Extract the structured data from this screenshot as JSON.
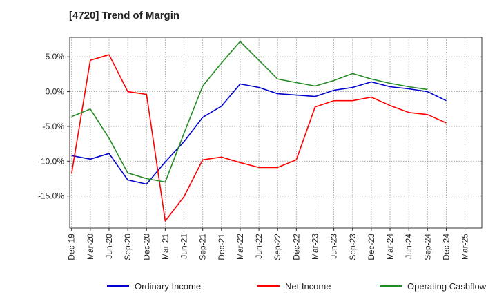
{
  "chart_data": {
    "type": "line",
    "title": "[4720]  Trend of Margin",
    "xlabel": "",
    "ylabel": "",
    "x": [
      "Dec-19",
      "Mar-20",
      "Jun-20",
      "Sep-20",
      "Dec-20",
      "Mar-21",
      "Jun-21",
      "Sep-21",
      "Dec-21",
      "Mar-22",
      "Jun-22",
      "Sep-22",
      "Dec-22",
      "Mar-23",
      "Jun-23",
      "Sep-23",
      "Dec-23",
      "Mar-24",
      "Jun-24",
      "Sep-24",
      "Dec-24",
      "Mar-25"
    ],
    "ylim": [
      -19.6,
      7.8
    ],
    "yticks": [
      5.0,
      0.0,
      -5.0,
      -10.0,
      -15.0
    ],
    "ytick_labels": [
      "5.0%",
      "0.0%",
      "-5.0%",
      "-10.0%",
      "-15.0%"
    ],
    "grid": true,
    "legend_position": "bottom",
    "series": [
      {
        "name": "Ordinary Income",
        "color": "#0000cc",
        "values": [
          -9.2,
          -9.7,
          -8.9,
          -12.7,
          -13.3,
          -10.1,
          -7.2,
          -3.7,
          -2.1,
          1.1,
          0.6,
          -0.3,
          -0.5,
          -0.7,
          0.2,
          0.6,
          1.4,
          0.7,
          0.4,
          0.0,
          -1.3,
          null
        ]
      },
      {
        "name": "Net Income",
        "color": "#ff0000",
        "values": [
          -11.8,
          4.5,
          5.3,
          0.0,
          -0.4,
          -18.6,
          -15.1,
          -9.8,
          -9.4,
          -10.2,
          -10.9,
          -10.9,
          -9.8,
          -2.2,
          -1.3,
          -1.3,
          -0.8,
          -2.0,
          -3.0,
          -3.3,
          -4.5,
          null
        ]
      },
      {
        "name": "Operating Cashflow",
        "color": "#228b22",
        "values": [
          -3.6,
          -2.5,
          -6.7,
          -11.7,
          -12.5,
          -13.0,
          -6.0,
          0.8,
          4.1,
          7.2,
          4.5,
          1.8,
          1.3,
          0.8,
          1.6,
          2.6,
          1.8,
          1.2,
          0.7,
          0.3,
          null,
          null
        ]
      }
    ]
  }
}
